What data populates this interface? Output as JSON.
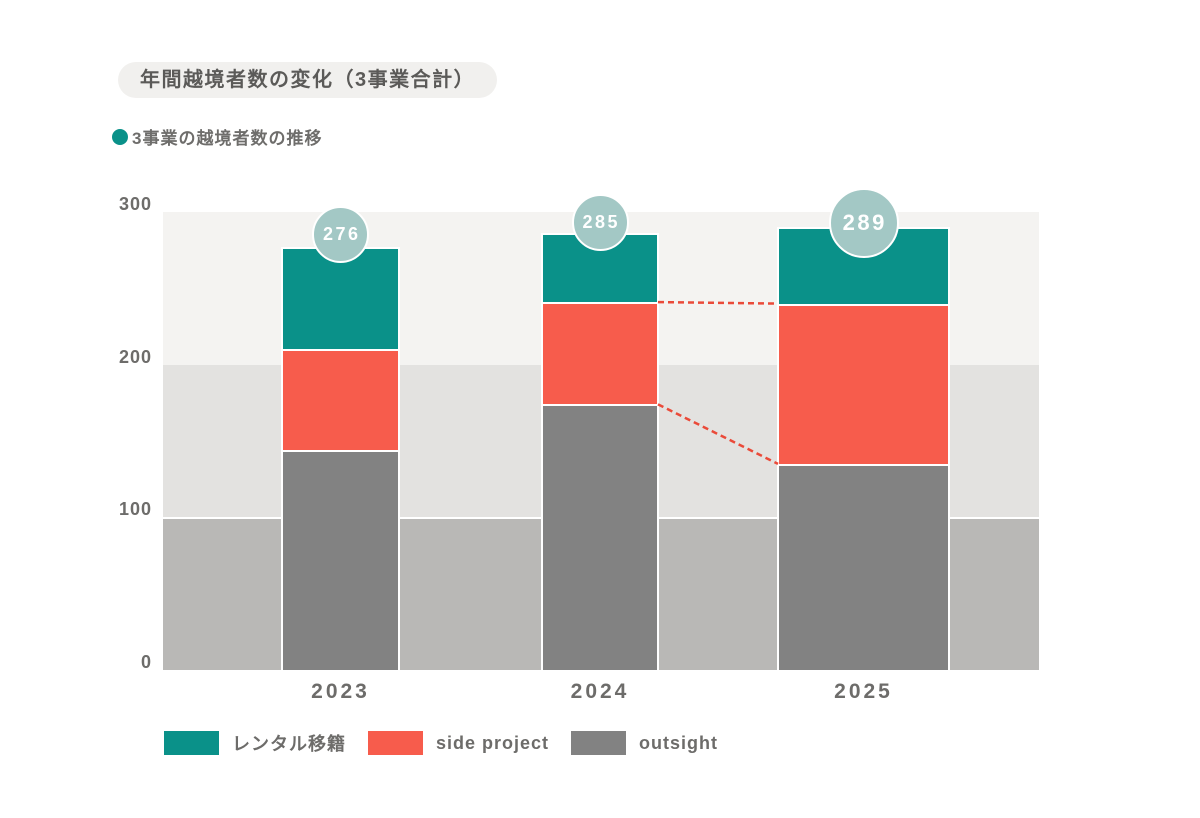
{
  "header": {
    "title": "年間越境者数の変化（3事業合計）",
    "subtitle": "3事業の越境者数の推移"
  },
  "colors": {
    "accent_teal": "#0a9189",
    "accent_coral": "#f75c4c",
    "neutral_gray": "#828282",
    "text_gray": "#6d6c6a"
  },
  "chart_data": {
    "type": "bar",
    "stacked": true,
    "title": "年間越境者数の変化（3事業合計）",
    "subtitle": "3事業の越境者数の推移",
    "categories": [
      "2023",
      "2024",
      "2025"
    ],
    "series": [
      {
        "name": "レンタル移籍",
        "color": "#0a9189",
        "values": [
          66,
          44,
          49
        ]
      },
      {
        "name": "side project",
        "color": "#f75c4c",
        "values": [
          66,
          67,
          105
        ]
      },
      {
        "name": "outsight",
        "color": "#828282",
        "values": [
          144,
          174,
          135
        ]
      }
    ],
    "stack_order_bottom_to_top": [
      "outsight",
      "side project",
      "レンタル移籍"
    ],
    "totals": [
      276,
      285,
      289
    ],
    "total_labels": [
      "276",
      "285",
      "289"
    ],
    "xlabel": "",
    "ylabel": "",
    "ylim": [
      0,
      300
    ],
    "yticks": [
      300,
      200,
      100,
      0
    ],
    "grid": "banded-background",
    "legend_position": "bottom",
    "background_bands": [
      "#f4f3f1",
      "#e3e2e0",
      "#b9b8b6"
    ],
    "total_bubble_color": "#a3c8c5",
    "connector_color": "#ea4a39",
    "connectors": [
      {
        "from_category": "2024",
        "to_category": "2025",
        "levels": [
          1,
          2
        ],
        "at_stack_levels": [
          "outsight",
          "outsight + side project"
        ]
      }
    ]
  }
}
